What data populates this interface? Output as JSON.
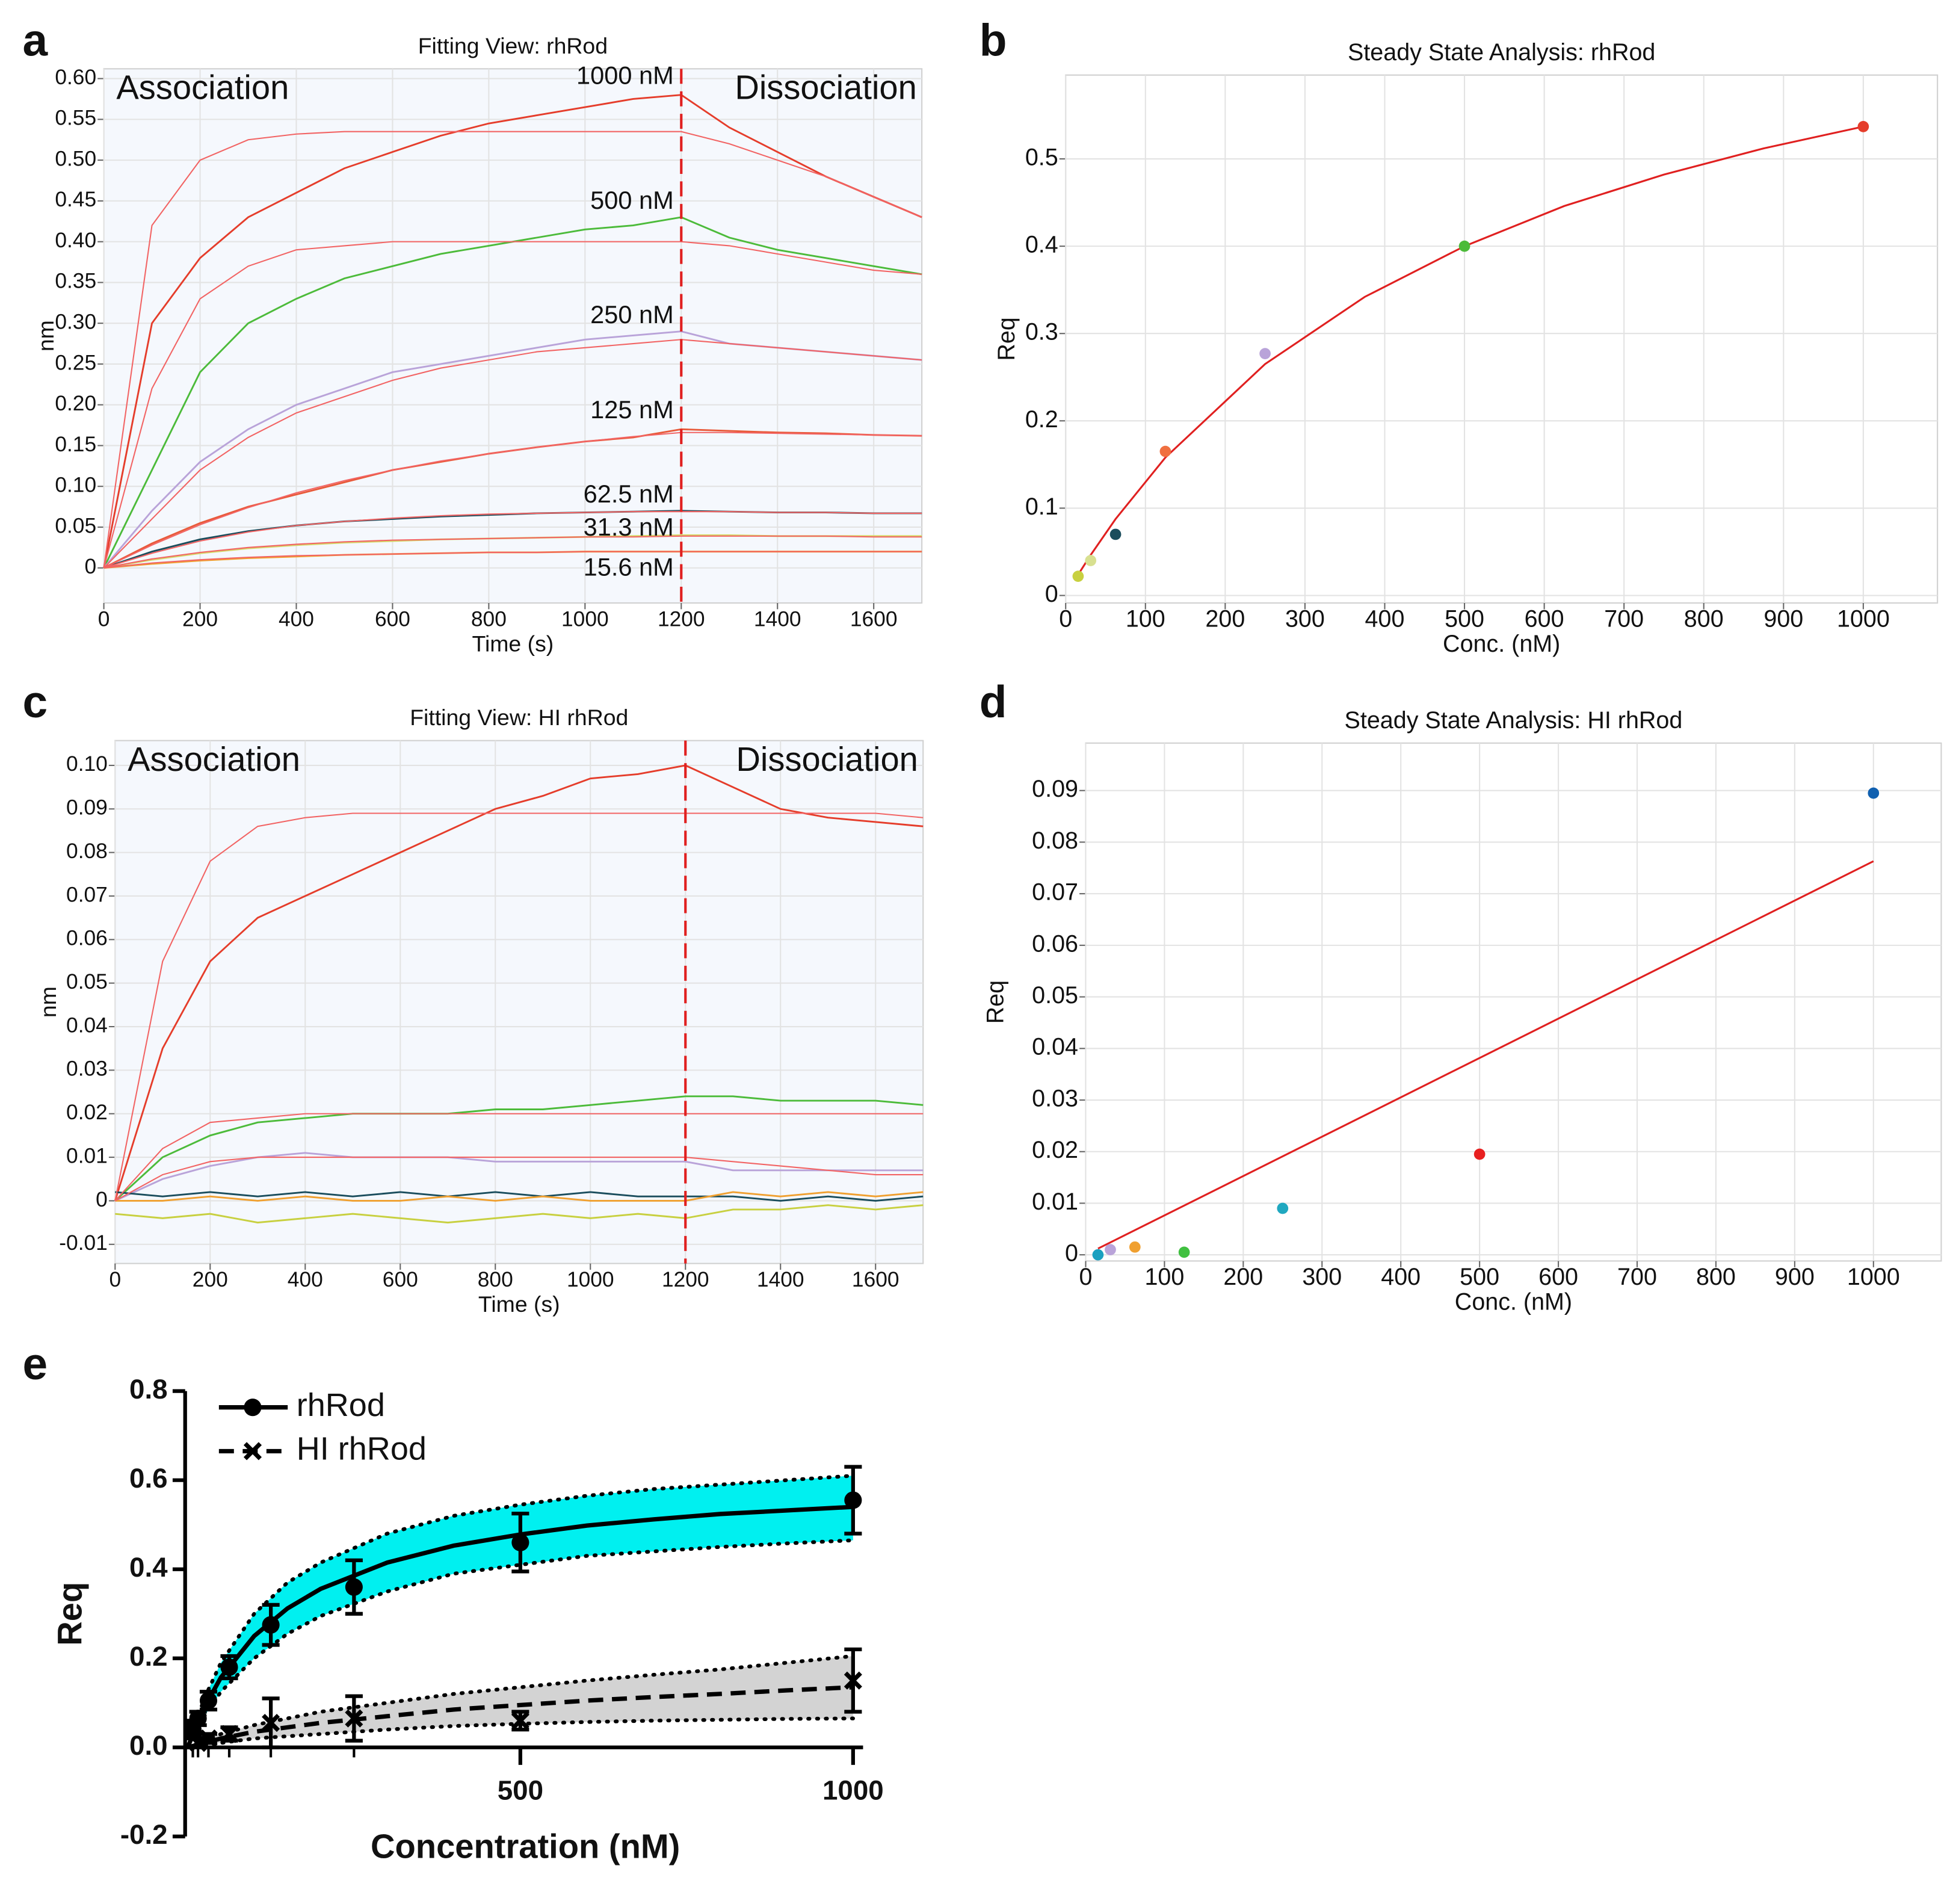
{
  "chart_data": [
    {
      "type": "line",
      "panel_label": "a",
      "title": "Fitting View: rhRod",
      "xlabel": "Time (s)",
      "ylabel": "nm",
      "annotations": [
        "Association",
        "Dissociation"
      ],
      "phase_boundary": 1200,
      "x": [
        0,
        100,
        200,
        300,
        400,
        500,
        600,
        700,
        800,
        900,
        1000,
        1100,
        1200,
        1300,
        1400,
        1500,
        1600,
        1700
      ],
      "xlim": [
        0,
        1700
      ],
      "xticks": [
        0,
        200,
        400,
        600,
        800,
        1000,
        1200,
        1400,
        1600
      ],
      "ylim": [
        -0.043,
        0.612
      ],
      "yticks": [
        0,
        0.05,
        {
          "value": 0.1,
          "label": "0.10"
        },
        0.15,
        {
          "value": 0.2,
          "label": "0.20"
        },
        0.25,
        {
          "value": 0.3,
          "label": "0.30"
        },
        0.35,
        {
          "value": 0.4,
          "label": "0.40"
        },
        0.45,
        {
          "value": 0.5,
          "label": "0.50"
        },
        0.55,
        {
          "value": 0.6,
          "label": "0.60"
        }
      ],
      "grid": true,
      "background": "#f5f8fd",
      "fit_color": "#f26464",
      "series": [
        {
          "name": "1000 nM",
          "color": "#e53d2b",
          "values": [
            0,
            0.3,
            0.38,
            0.43,
            0.46,
            0.49,
            0.51,
            0.53,
            0.545,
            0.555,
            0.565,
            0.575,
            0.58,
            0.54,
            0.51,
            0.48,
            0.455,
            0.43
          ],
          "fit": [
            0,
            0.42,
            0.5,
            0.525,
            0.532,
            0.535,
            0.535,
            0.535,
            0.535,
            0.535,
            0.535,
            0.535,
            0.535,
            0.52,
            0.5,
            0.48,
            0.455,
            0.43
          ]
        },
        {
          "name": "500 nM",
          "color": "#4cbb3a",
          "values": [
            0,
            0.12,
            0.24,
            0.3,
            0.33,
            0.355,
            0.37,
            0.385,
            0.395,
            0.405,
            0.415,
            0.42,
            0.43,
            0.405,
            0.39,
            0.38,
            0.37,
            0.36
          ],
          "fit": [
            0,
            0.22,
            0.33,
            0.37,
            0.39,
            0.395,
            0.4,
            0.4,
            0.4,
            0.4,
            0.4,
            0.4,
            0.4,
            0.395,
            0.385,
            0.375,
            0.365,
            0.36
          ]
        },
        {
          "name": "250 nM",
          "color": "#b9a3d9",
          "values": [
            0,
            0.07,
            0.13,
            0.17,
            0.2,
            0.22,
            0.24,
            0.25,
            0.26,
            0.27,
            0.28,
            0.285,
            0.29,
            0.275,
            0.27,
            0.265,
            0.26,
            0.255
          ],
          "fit": [
            0,
            0.06,
            0.12,
            0.16,
            0.19,
            0.21,
            0.23,
            0.245,
            0.255,
            0.265,
            0.27,
            0.275,
            0.28,
            0.275,
            0.27,
            0.265,
            0.26,
            0.255
          ]
        },
        {
          "name": "125 nM",
          "color": "#e85a3a",
          "values": [
            0,
            0.03,
            0.055,
            0.075,
            0.09,
            0.105,
            0.12,
            0.13,
            0.14,
            0.148,
            0.155,
            0.16,
            0.17,
            0.168,
            0.166,
            0.165,
            0.163,
            0.162
          ],
          "fit": [
            0,
            0.028,
            0.053,
            0.074,
            0.092,
            0.107,
            0.12,
            0.131,
            0.14,
            0.148,
            0.155,
            0.161,
            0.166,
            0.166,
            0.165,
            0.164,
            0.163,
            0.162
          ]
        },
        {
          "name": "62.5 nM",
          "color": "#1a4d5c",
          "values": [
            0,
            0.02,
            0.035,
            0.045,
            0.052,
            0.057,
            0.06,
            0.063,
            0.065,
            0.067,
            0.068,
            0.069,
            0.07,
            0.069,
            0.068,
            0.068,
            0.067,
            0.067
          ],
          "fit": [
            0,
            0.018,
            0.033,
            0.044,
            0.052,
            0.057,
            0.061,
            0.064,
            0.066,
            0.067,
            0.068,
            0.069,
            0.069,
            0.069,
            0.068,
            0.068,
            0.067,
            0.067
          ]
        },
        {
          "name": "31.3 nM",
          "color": "#d5d96a",
          "values": [
            0,
            0.01,
            0.018,
            0.024,
            0.028,
            0.031,
            0.033,
            0.035,
            0.036,
            0.037,
            0.038,
            0.039,
            0.04,
            0.04,
            0.039,
            0.039,
            0.039,
            0.039
          ],
          "fit": [
            0,
            0.011,
            0.019,
            0.025,
            0.029,
            0.032,
            0.034,
            0.035,
            0.036,
            0.037,
            0.038,
            0.038,
            0.039,
            0.039,
            0.039,
            0.039,
            0.038,
            0.038
          ]
        },
        {
          "name": "15.6 nM",
          "color": "#f0a030",
          "values": [
            0,
            0.005,
            0.009,
            0.012,
            0.014,
            0.016,
            0.017,
            0.018,
            0.019,
            0.019,
            0.02,
            0.02,
            0.02,
            0.02,
            0.02,
            0.02,
            0.02,
            0.02
          ],
          "fit": [
            0,
            0.006,
            0.01,
            0.013,
            0.015,
            0.016,
            0.017,
            0.018,
            0.019,
            0.019,
            0.02,
            0.02,
            0.02,
            0.02,
            0.02,
            0.02,
            0.02,
            0.02
          ]
        }
      ]
    },
    {
      "type": "scatter",
      "panel_label": "b",
      "title": "Steady State Analysis: rhRod",
      "xlabel": "Conc. (nM)",
      "ylabel": "Req",
      "x": [
        15.6,
        31.3,
        62.5,
        125,
        250,
        500,
        1000
      ],
      "values": [
        0.022,
        0.04,
        0.07,
        0.165,
        0.277,
        0.4,
        0.537
      ],
      "colors": [
        "#c8d040",
        "#d8e090",
        "#1a4d5c",
        "#f07040",
        "#b9a3d9",
        "#4cbb3a",
        "#e53d2b"
      ],
      "fit_x": [
        15.6,
        31.3,
        62.5,
        125,
        250,
        375,
        500,
        625,
        750,
        875,
        1000
      ],
      "fit_values": [
        0.0238,
        0.0463,
        0.0875,
        0.158,
        0.265,
        0.342,
        0.4,
        0.446,
        0.482,
        0.512,
        0.537
      ],
      "fit_color": "#e02020",
      "xlim": [
        0,
        1093
      ],
      "xticks": [
        0,
        100,
        200,
        300,
        400,
        500,
        600,
        700,
        800,
        900,
        1000
      ],
      "ylim": [
        -0.0086,
        0.596
      ],
      "yticks": [
        0,
        0.1,
        0.2,
        0.3,
        0.4,
        0.5
      ],
      "grid": true,
      "background": "#ffffff"
    },
    {
      "type": "line",
      "panel_label": "c",
      "title": "Fitting View: HI rhRod",
      "xlabel": "Time (s)",
      "ylabel": "nm",
      "annotations": [
        "Association",
        "Dissociation"
      ],
      "phase_boundary": 1200,
      "x": [
        0,
        100,
        200,
        300,
        400,
        500,
        600,
        700,
        800,
        900,
        1000,
        1100,
        1200,
        1300,
        1400,
        1500,
        1600,
        1700
      ],
      "xlim": [
        0,
        1700
      ],
      "xticks": [
        0,
        200,
        400,
        600,
        800,
        1000,
        1200,
        1400,
        1600
      ],
      "ylim": [
        -0.0144,
        0.1057
      ],
      "yticks": [
        -0.01,
        0,
        0.01,
        0.02,
        0.03,
        0.04,
        0.05,
        0.06,
        0.07,
        0.08,
        0.09,
        {
          "value": 0.1,
          "label": "0.10"
        }
      ],
      "grid": true,
      "background": "#f5f8fd",
      "fit_color": "#f26464",
      "series": [
        {
          "color": "#e53d2b",
          "values": [
            0,
            0.035,
            0.055,
            0.065,
            0.07,
            0.075,
            0.08,
            0.085,
            0.09,
            0.093,
            0.097,
            0.098,
            0.1,
            0.095,
            0.09,
            0.088,
            0.087,
            0.086
          ],
          "fit": [
            0,
            0.055,
            0.078,
            0.086,
            0.088,
            0.089,
            0.089,
            0.089,
            0.089,
            0.089,
            0.089,
            0.089,
            0.089,
            0.089,
            0.089,
            0.089,
            0.089,
            0.088
          ]
        },
        {
          "color": "#4cbb3a",
          "values": [
            0,
            0.01,
            0.015,
            0.018,
            0.019,
            0.02,
            0.02,
            0.02,
            0.021,
            0.021,
            0.022,
            0.023,
            0.024,
            0.024,
            0.023,
            0.023,
            0.023,
            0.022
          ],
          "fit": [
            0,
            0.012,
            0.018,
            0.019,
            0.02,
            0.02,
            0.02,
            0.02,
            0.02,
            0.02,
            0.02,
            0.02,
            0.02,
            0.02,
            0.02,
            0.02,
            0.02,
            0.02
          ]
        },
        {
          "color": "#b9a3d9",
          "values": [
            0,
            0.005,
            0.008,
            0.01,
            0.011,
            0.01,
            0.01,
            0.01,
            0.009,
            0.009,
            0.009,
            0.009,
            0.009,
            0.007,
            0.007,
            0.007,
            0.007,
            0.007
          ],
          "fit": [
            0,
            0.006,
            0.009,
            0.01,
            0.01,
            0.01,
            0.01,
            0.01,
            0.01,
            0.01,
            0.01,
            0.01,
            0.01,
            0.009,
            0.008,
            0.007,
            0.006,
            0.006
          ]
        },
        {
          "color": "#1a4d5c",
          "values": [
            0.002,
            0.001,
            0.002,
            0.001,
            0.002,
            0.001,
            0.002,
            0.001,
            0.002,
            0.001,
            0.002,
            0.001,
            0.001,
            0.001,
            0,
            0.001,
            0,
            0.001
          ]
        },
        {
          "color": "#f0a030",
          "values": [
            0,
            0,
            0.001,
            0,
            0.001,
            0,
            0,
            0.001,
            0,
            0.001,
            0,
            0,
            0,
            0.002,
            0.001,
            0.002,
            0.001,
            0.002
          ]
        },
        {
          "color": "#c8d040",
          "values": [
            -0.003,
            -0.004,
            -0.003,
            -0.005,
            -0.004,
            -0.003,
            -0.004,
            -0.005,
            -0.004,
            -0.003,
            -0.004,
            -0.003,
            -0.004,
            -0.002,
            -0.002,
            -0.001,
            -0.002,
            -0.001
          ]
        }
      ]
    },
    {
      "type": "scatter",
      "panel_label": "d",
      "title": "Steady State Analysis: HI rhRod",
      "xlabel": "Conc. (nM)",
      "ylabel": "Req",
      "x": [
        15.6,
        31.3,
        62.5,
        125,
        250,
        500,
        1000
      ],
      "values": [
        0,
        0.001,
        0.0015,
        0.0005,
        0.009,
        0.0195,
        0.0895
      ],
      "colors": [
        "#1aa0c0",
        "#b9a3d9",
        "#f0a030",
        "#40c040",
        "#20a8c0",
        "#e82020",
        "#1060b0"
      ],
      "fit_x": [
        15.6,
        1000
      ],
      "fit_values": [
        0.0012,
        0.0763
      ],
      "fit_color": "#e02020",
      "xlim": [
        0,
        1086
      ],
      "xticks": [
        0,
        100,
        200,
        300,
        400,
        500,
        600,
        700,
        800,
        900,
        1000
      ],
      "ylim": [
        -0.0012,
        0.0992
      ],
      "yticks": [
        0,
        0.01,
        0.02,
        0.03,
        0.04,
        0.05,
        0.06,
        0.07,
        0.08,
        0.09
      ],
      "grid": true,
      "background": "#ffffff"
    },
    {
      "type": "errorbar",
      "panel_label": "e",
      "xlabel": "Concentration (nM)",
      "ylabel": "Req",
      "x": [
        7.8,
        15.6,
        31.3,
        62.5,
        125,
        250,
        500,
        1000
      ],
      "fit_x": [
        0,
        25,
        50,
        100,
        150,
        200,
        300,
        400,
        500,
        600,
        700,
        800,
        900,
        1000
      ],
      "xlim": [
        0,
        1015
      ],
      "xticks": [
        500,
        1000
      ],
      "ylim": [
        -0.2,
        0.8
      ],
      "yticks": [
        -0.2,
        {
          "value": 0,
          "label": "0.0"
        },
        0.2,
        0.4,
        0.6,
        0.8
      ],
      "series": [
        {
          "name": "rhRod",
          "marker": "circle",
          "line_style": "solid",
          "band_color": "#00f0f0",
          "values": [
            0.04,
            0.065,
            0.105,
            0.18,
            0.275,
            0.36,
            0.46,
            0.555
          ],
          "errors": [
            0.015,
            0.015,
            0.02,
            0.025,
            0.045,
            0.06,
            0.065,
            0.075
          ],
          "fit": [
            0,
            0.0896,
            0.157,
            0.25,
            0.312,
            0.356,
            0.415,
            0.453,
            0.478,
            0.498,
            0.512,
            0.524,
            0.532,
            0.54
          ],
          "band_lower": [
            0,
            0.07,
            0.125,
            0.2,
            0.255,
            0.295,
            0.35,
            0.39,
            0.41,
            0.43,
            0.44,
            0.45,
            0.458,
            0.465
          ],
          "band_upper": [
            0,
            0.11,
            0.19,
            0.3,
            0.37,
            0.415,
            0.48,
            0.52,
            0.545,
            0.565,
            0.58,
            0.59,
            0.6,
            0.61
          ]
        },
        {
          "name": "HI rhRod",
          "marker": "cross",
          "line_style": "dashed",
          "band_color": "#d3d3d3",
          "values": [
            0.04,
            0.01,
            0.02,
            0.03,
            0.055,
            0.065,
            0.06,
            0.15
          ],
          "errors": [
            0.02,
            0.01,
            0.01,
            0.015,
            0.055,
            0.05,
            0.02,
            0.07
          ],
          "fit": [
            0,
            0.01,
            0.02,
            0.035,
            0.045,
            0.055,
            0.07,
            0.085,
            0.095,
            0.105,
            0.113,
            0.12,
            0.128,
            0.135
          ],
          "band_lower": [
            0,
            0.005,
            0.01,
            0.02,
            0.025,
            0.03,
            0.04,
            0.048,
            0.053,
            0.057,
            0.06,
            0.062,
            0.064,
            0.065
          ],
          "band_upper": [
            0,
            0.015,
            0.03,
            0.05,
            0.065,
            0.08,
            0.1,
            0.12,
            0.135,
            0.15,
            0.163,
            0.175,
            0.19,
            0.205
          ]
        }
      ]
    }
  ]
}
